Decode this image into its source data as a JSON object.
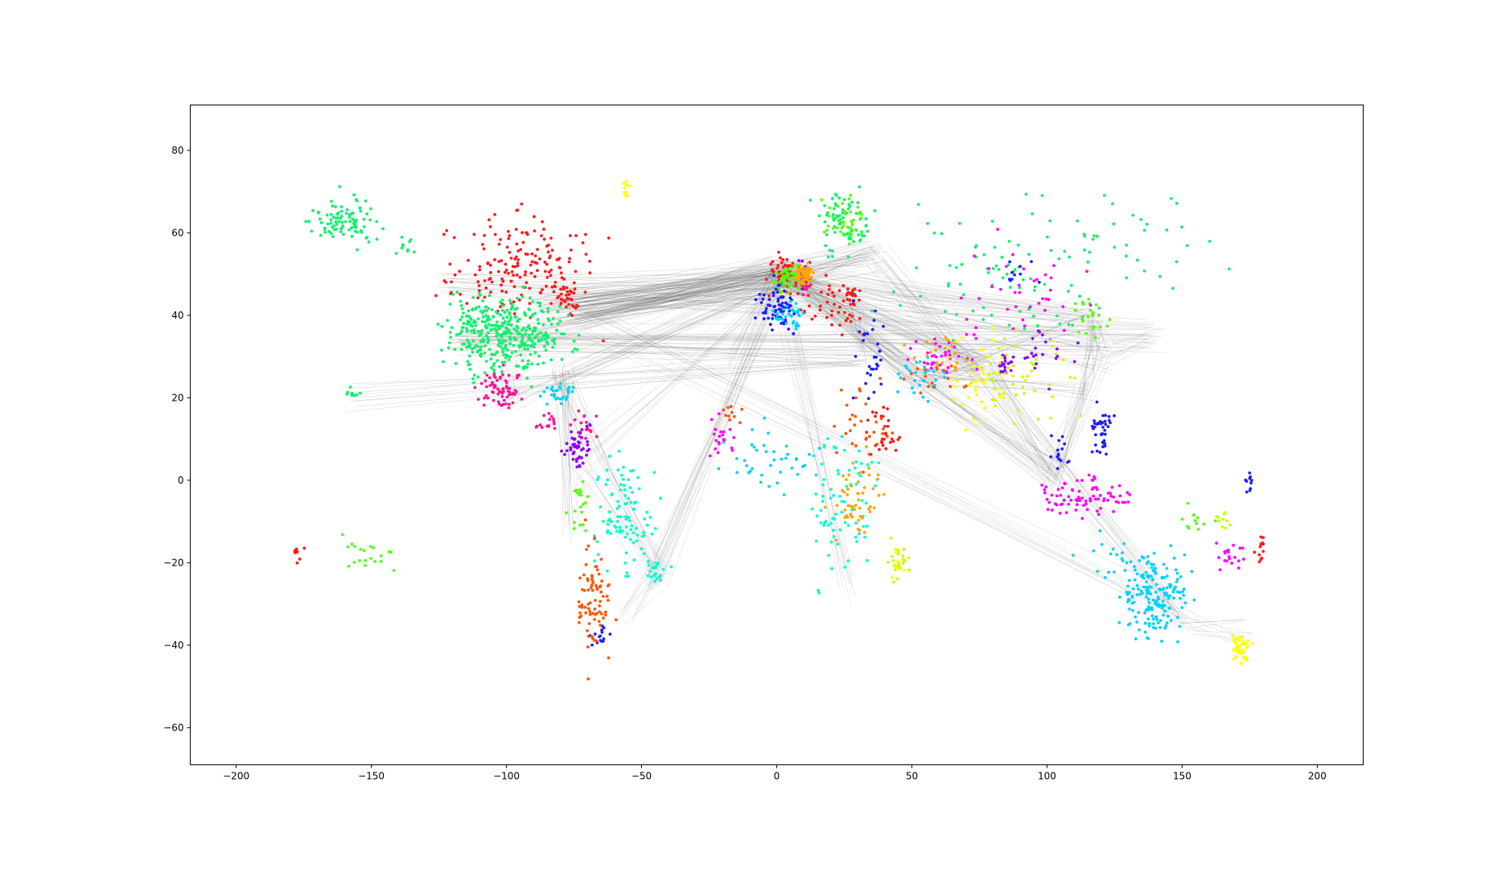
{
  "chart_data": {
    "type": "scatter",
    "title": "",
    "xlabel": "",
    "ylabel": "",
    "xlim": [
      -217,
      217
    ],
    "ylim": [
      -69,
      91
    ],
    "grid": false,
    "legend": "none",
    "x_ticks": [
      -200,
      -150,
      -100,
      -50,
      0,
      50,
      100,
      150,
      200
    ],
    "y_ticks": [
      80,
      60,
      40,
      20,
      0,
      -20,
      -40,
      -60
    ],
    "x_tick_labels": [
      "−200",
      "−150",
      "−100",
      "−50",
      "0",
      "50",
      "100",
      "150",
      "200"
    ],
    "y_tick_labels": [
      "80",
      "60",
      "40",
      "20",
      "0",
      "−20",
      "−40",
      "−60"
    ],
    "edge_color": "#555555",
    "series": [
      {
        "color": "#ff1a1a",
        "clusters": [
          [
            -95,
            52,
            22,
            10,
            180
          ],
          [
            -78,
            44,
            4,
            3,
            25
          ],
          [
            3,
            50,
            5,
            4,
            60
          ],
          [
            20,
            42,
            10,
            6,
            40
          ],
          [
            40,
            12,
            5,
            5,
            30
          ],
          [
            179,
            -17,
            2,
            2,
            12
          ],
          [
            -178,
            -18,
            2,
            2,
            8
          ],
          [
            28,
            45,
            3,
            3,
            20
          ]
        ]
      },
      {
        "color": "#14f06e",
        "clusters": [
          [
            -100,
            36,
            18,
            8,
            380
          ],
          [
            -160,
            63,
            10,
            5,
            90
          ],
          [
            -157,
            21,
            3,
            1.5,
            10
          ],
          [
            25,
            62,
            8,
            6,
            70
          ],
          [
            80,
            50,
            30,
            12,
            70
          ],
          [
            125,
            58,
            35,
            10,
            40
          ],
          [
            -138,
            57,
            3,
            2,
            10
          ]
        ]
      },
      {
        "color": "#55ff10",
        "clusters": [
          [
            5,
            49,
            4,
            3,
            60
          ],
          [
            25,
            63,
            8,
            5,
            40
          ],
          [
            -150,
            -17,
            10,
            4,
            20
          ],
          [
            -73,
            -5,
            3,
            5,
            20
          ],
          [
            115,
            40,
            5,
            4,
            25
          ],
          [
            155,
            -10,
            6,
            3,
            12
          ]
        ]
      },
      {
        "color": "#ff1493",
        "clusters": [
          [
            -102,
            22,
            6,
            4,
            70
          ],
          [
            -70,
            13,
            5,
            3,
            20
          ],
          [
            -85,
            14,
            4,
            2,
            15
          ],
          [
            10,
            48,
            3,
            2,
            15
          ]
        ]
      },
      {
        "color": "#8a00ff",
        "clusters": [
          [
            -74,
            8,
            4,
            4,
            50
          ],
          [
            10,
            50,
            2,
            4,
            20
          ],
          [
            85,
            28,
            3,
            2,
            20
          ],
          [
            100,
            30,
            8,
            5,
            20
          ]
        ]
      },
      {
        "color": "#1f1fff",
        "clusters": [
          [
            0,
            42,
            6,
            5,
            70
          ],
          [
            120,
            12,
            3,
            5,
            40
          ],
          [
            -65,
            -38,
            3,
            2,
            15
          ],
          [
            35,
            30,
            5,
            10,
            30
          ],
          [
            105,
            7,
            3,
            4,
            15
          ],
          [
            175,
            0,
            2,
            2,
            10
          ],
          [
            90,
            50,
            5,
            3,
            10
          ]
        ]
      },
      {
        "color": "#00d2ff",
        "clusters": [
          [
            140,
            -28,
            10,
            8,
            180
          ],
          [
            5,
            40,
            5,
            3,
            30
          ],
          [
            -80,
            21,
            5,
            2,
            30
          ],
          [
            0,
            5,
            15,
            8,
            40
          ],
          [
            55,
            25,
            10,
            6,
            30
          ],
          [
            125,
            -18,
            10,
            5,
            20
          ]
        ]
      },
      {
        "color": "#00ffcc",
        "clusters": [
          [
            -55,
            -10,
            10,
            10,
            80
          ],
          [
            25,
            -5,
            10,
            15,
            80
          ],
          [
            -45,
            -23,
            4,
            3,
            20
          ],
          [
            -60,
            0,
            8,
            6,
            20
          ]
        ]
      },
      {
        "color": "#ff5500",
        "clusters": [
          [
            -68,
            -30,
            5,
            12,
            80
          ],
          [
            33,
            15,
            10,
            8,
            30
          ],
          [
            -16,
            16,
            3,
            2,
            10
          ],
          [
            60,
            25,
            10,
            5,
            20
          ]
        ]
      },
      {
        "color": "#ffa500",
        "clusters": [
          [
            10,
            50,
            3,
            2,
            60
          ],
          [
            30,
            -5,
            8,
            8,
            50
          ],
          [
            60,
            30,
            10,
            5,
            20
          ]
        ]
      },
      {
        "color": "#ff00ff",
        "clusters": [
          [
            115,
            -4,
            15,
            4,
            80
          ],
          [
            90,
            45,
            20,
            10,
            40
          ],
          [
            60,
            30,
            10,
            5,
            30
          ],
          [
            -20,
            10,
            5,
            5,
            20
          ],
          [
            168,
            -18,
            4,
            3,
            20
          ]
        ]
      },
      {
        "color": "#ffff00",
        "clusters": [
          [
            172,
            -41,
            3,
            3,
            40
          ],
          [
            75,
            25,
            10,
            10,
            40
          ],
          [
            -56,
            70,
            2,
            3,
            10
          ],
          [
            45,
            -20,
            2,
            3,
            10
          ]
        ]
      },
      {
        "color": "#c8ff00",
        "clusters": [
          [
            90,
            25,
            15,
            8,
            50
          ],
          [
            45,
            -20,
            3,
            4,
            25
          ],
          [
            165,
            -10,
            3,
            2,
            10
          ]
        ]
      }
    ],
    "edge_hubs": [
      [
        -84,
        42
      ],
      [
        -74,
        40
      ],
      [
        -88,
        42
      ],
      [
        -118,
        34
      ],
      [
        -122,
        47
      ],
      [
        -97,
        33
      ],
      [
        -80,
        26
      ],
      [
        -99,
        19
      ],
      [
        0,
        51
      ],
      [
        2,
        49
      ],
      [
        8,
        50
      ],
      [
        12,
        48
      ],
      [
        -3,
        40
      ],
      [
        37,
        55
      ],
      [
        28,
        41
      ],
      [
        55,
        25
      ],
      [
        51,
        25
      ],
      [
        77,
        28
      ],
      [
        103,
        1
      ],
      [
        114,
        22
      ],
      [
        116,
        40
      ],
      [
        121,
        31
      ],
      [
        139,
        35
      ],
      [
        151,
        -34
      ],
      [
        174,
        -37
      ],
      [
        -46,
        -23
      ],
      [
        -43,
        -23
      ],
      [
        -58,
        -34
      ],
      [
        -74,
        4
      ],
      [
        -77,
        -12
      ],
      [
        28,
        -26
      ],
      [
        32,
        30
      ],
      [
        -157,
        21
      ],
      [
        -17,
        28
      ]
    ],
    "edges": [
      [
        0,
        8
      ],
      [
        0,
        9
      ],
      [
        0,
        10
      ],
      [
        1,
        8
      ],
      [
        1,
        9
      ],
      [
        1,
        10
      ],
      [
        1,
        11
      ],
      [
        1,
        13
      ],
      [
        1,
        23
      ],
      [
        2,
        8
      ],
      [
        2,
        9
      ],
      [
        3,
        9
      ],
      [
        3,
        21
      ],
      [
        3,
        22
      ],
      [
        3,
        31
      ],
      [
        4,
        9
      ],
      [
        4,
        22
      ],
      [
        5,
        7
      ],
      [
        5,
        8
      ],
      [
        6,
        9
      ],
      [
        6,
        26
      ],
      [
        6,
        28
      ],
      [
        7,
        9
      ],
      [
        8,
        13
      ],
      [
        8,
        14
      ],
      [
        8,
        15
      ],
      [
        8,
        17
      ],
      [
        8,
        20
      ],
      [
        8,
        33
      ],
      [
        9,
        14
      ],
      [
        9,
        15
      ],
      [
        9,
        16
      ],
      [
        9,
        17
      ],
      [
        9,
        18
      ],
      [
        9,
        20
      ],
      [
        9,
        21
      ],
      [
        9,
        25
      ],
      [
        9,
        30
      ],
      [
        10,
        13
      ],
      [
        10,
        14
      ],
      [
        11,
        13
      ],
      [
        11,
        15
      ],
      [
        13,
        17
      ],
      [
        13,
        18
      ],
      [
        14,
        16
      ],
      [
        14,
        17
      ],
      [
        14,
        31
      ],
      [
        15,
        16
      ],
      [
        15,
        17
      ],
      [
        15,
        18
      ],
      [
        15,
        19
      ],
      [
        15,
        20
      ],
      [
        16,
        17
      ],
      [
        16,
        18
      ],
      [
        17,
        18
      ],
      [
        17,
        23
      ],
      [
        18,
        19
      ],
      [
        18,
        21
      ],
      [
        19,
        20
      ],
      [
        20,
        21
      ],
      [
        21,
        22
      ],
      [
        18,
        23
      ],
      [
        23,
        24
      ],
      [
        25,
        26
      ],
      [
        25,
        27
      ],
      [
        26,
        28
      ],
      [
        9,
        26
      ],
      [
        9,
        28
      ],
      [
        6,
        29
      ],
      [
        31,
        32
      ]
    ]
  }
}
